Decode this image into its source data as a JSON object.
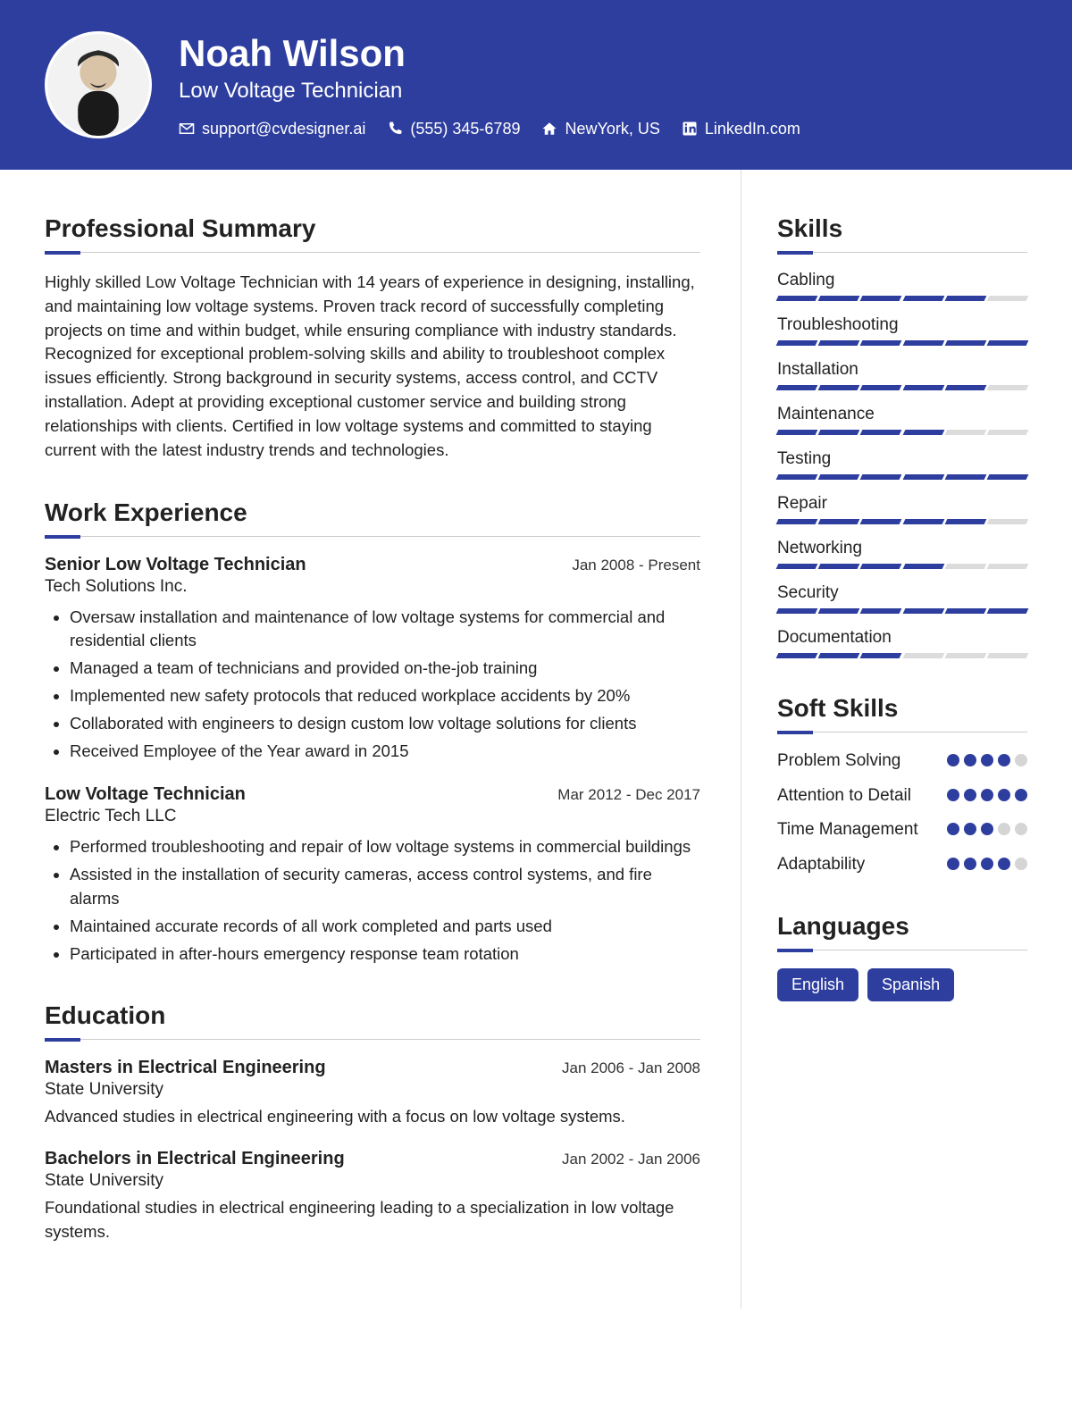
{
  "colors": {
    "brand": "#2e3e9e",
    "bar_off": "#dcdcdc",
    "dot_off": "#d5d5d5",
    "text": "#222222",
    "rule": "#cccccc"
  },
  "header": {
    "name": "Noah Wilson",
    "title": "Low Voltage Technician",
    "contacts": [
      {
        "icon": "envelope",
        "text": "support@cvdesigner.ai"
      },
      {
        "icon": "phone",
        "text": "(555) 345-6789"
      },
      {
        "icon": "home",
        "text": "NewYork, US"
      },
      {
        "icon": "linkedin",
        "text": "LinkedIn.com"
      }
    ]
  },
  "sections": {
    "summary_title": "Professional Summary",
    "summary_text": "Highly skilled Low Voltage Technician with 14 years of experience in designing, installing, and maintaining low voltage systems. Proven track record of successfully completing projects on time and within budget, while ensuring compliance with industry standards. Recognized for exceptional problem-solving skills and ability to troubleshoot complex issues efficiently. Strong background in security systems, access control, and CCTV installation. Adept at providing exceptional customer service and building strong relationships with clients. Certified in low voltage systems and committed to staying current with the latest industry trends and technologies.",
    "work_title": "Work Experience",
    "education_title": "Education",
    "skills_title": "Skills",
    "soft_skills_title": "Soft Skills",
    "languages_title": "Languages"
  },
  "work": [
    {
      "title": "Senior Low Voltage Technician",
      "date": "Jan 2008 - Present",
      "company": "Tech Solutions Inc.",
      "bullets": [
        "Oversaw installation and maintenance of low voltage systems for commercial and residential clients",
        "Managed a team of technicians and provided on-the-job training",
        "Implemented new safety protocols that reduced workplace accidents by 20%",
        "Collaborated with engineers to design custom low voltage solutions for clients",
        "Received Employee of the Year award in 2015"
      ]
    },
    {
      "title": "Low Voltage Technician",
      "date": "Mar 2012 - Dec 2017",
      "company": "Electric Tech LLC",
      "bullets": [
        "Performed troubleshooting and repair of low voltage systems in commercial buildings",
        "Assisted in the installation of security cameras, access control systems, and fire alarms",
        "Maintained accurate records of all work completed and parts used",
        "Participated in after-hours emergency response team rotation"
      ]
    }
  ],
  "education": [
    {
      "title": "Masters in Electrical Engineering",
      "date": "Jan 2006 - Jan 2008",
      "school": "State University",
      "desc": "Advanced studies in electrical engineering with a focus on low voltage systems."
    },
    {
      "title": "Bachelors in Electrical Engineering",
      "date": "Jan 2002 - Jan 2006",
      "school": "State University",
      "desc": "Foundational studies in electrical engineering leading to a specialization in low voltage systems."
    }
  ],
  "skills": {
    "segments": 6,
    "items": [
      {
        "name": "Cabling",
        "level": 5
      },
      {
        "name": "Troubleshooting",
        "level": 6
      },
      {
        "name": "Installation",
        "level": 5
      },
      {
        "name": "Maintenance",
        "level": 4
      },
      {
        "name": "Testing",
        "level": 6
      },
      {
        "name": "Repair",
        "level": 5
      },
      {
        "name": "Networking",
        "level": 4
      },
      {
        "name": "Security",
        "level": 6
      },
      {
        "name": "Documentation",
        "level": 3
      }
    ]
  },
  "soft_skills": {
    "max": 5,
    "items": [
      {
        "name": "Problem Solving",
        "level": 4
      },
      {
        "name": "Attention to Detail",
        "level": 5
      },
      {
        "name": "Time Management",
        "level": 3
      },
      {
        "name": "Adaptability",
        "level": 4
      }
    ]
  },
  "languages": [
    "English",
    "Spanish"
  ]
}
